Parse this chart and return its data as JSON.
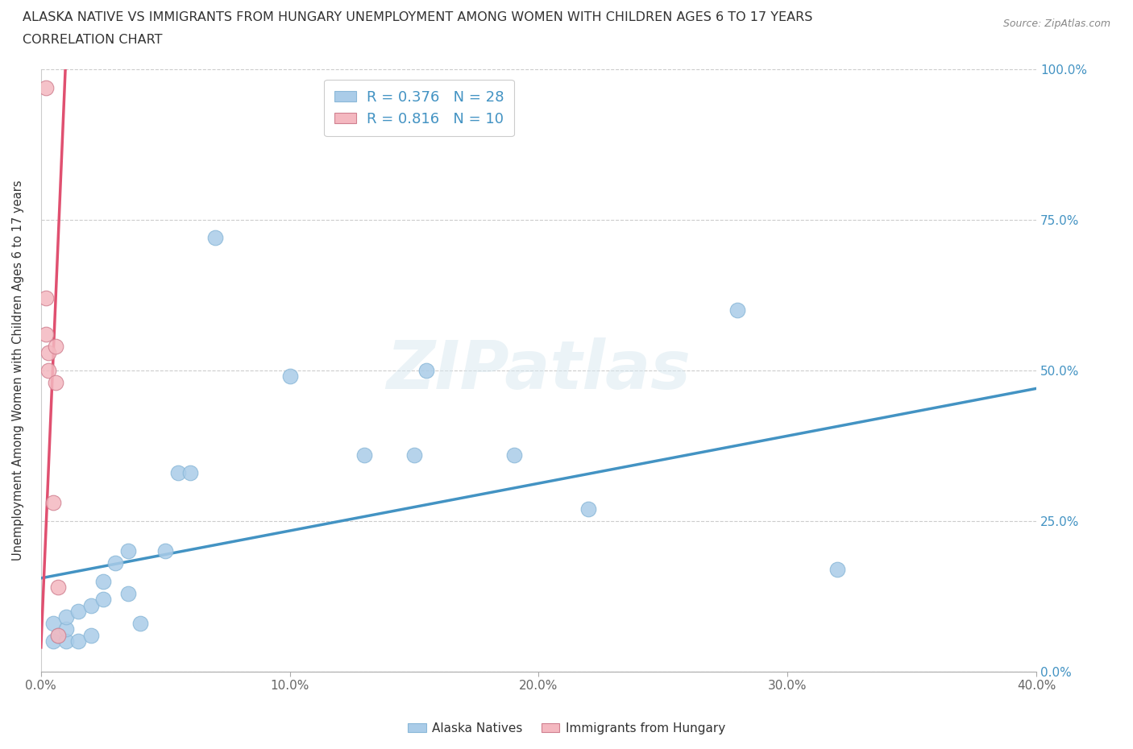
{
  "title_line1": "ALASKA NATIVE VS IMMIGRANTS FROM HUNGARY UNEMPLOYMENT AMONG WOMEN WITH CHILDREN AGES 6 TO 17 YEARS",
  "title_line2": "CORRELATION CHART",
  "source_text": "Source: ZipAtlas.com",
  "xlabel_ticks": [
    "0.0%",
    "10.0%",
    "20.0%",
    "30.0%",
    "40.0%"
  ],
  "xlabel_vals": [
    0.0,
    0.1,
    0.2,
    0.3,
    0.4
  ],
  "ylabel_ticks": [
    "0.0%",
    "25.0%",
    "50.0%",
    "75.0%",
    "100.0%"
  ],
  "ylabel_vals": [
    0.0,
    0.25,
    0.5,
    0.75,
    1.0
  ],
  "watermark": "ZIPatlas",
  "blue_color": "#aacce8",
  "pink_color": "#f4b8c0",
  "blue_line_color": "#4393c3",
  "pink_line_color": "#e05070",
  "alaska_x": [
    0.005,
    0.005,
    0.007,
    0.01,
    0.01,
    0.01,
    0.015,
    0.015,
    0.02,
    0.02,
    0.025,
    0.025,
    0.03,
    0.035,
    0.035,
    0.04,
    0.05,
    0.055,
    0.06,
    0.07,
    0.1,
    0.13,
    0.15,
    0.155,
    0.19,
    0.22,
    0.28,
    0.32
  ],
  "alaska_y": [
    0.05,
    0.08,
    0.06,
    0.05,
    0.07,
    0.09,
    0.05,
    0.1,
    0.06,
    0.11,
    0.12,
    0.15,
    0.18,
    0.13,
    0.2,
    0.08,
    0.2,
    0.33,
    0.33,
    0.72,
    0.49,
    0.36,
    0.36,
    0.5,
    0.36,
    0.27,
    0.6,
    0.17
  ],
  "hungary_x": [
    0.002,
    0.002,
    0.002,
    0.003,
    0.003,
    0.005,
    0.006,
    0.006,
    0.007,
    0.007
  ],
  "hungary_y": [
    0.97,
    0.62,
    0.56,
    0.53,
    0.5,
    0.28,
    0.54,
    0.48,
    0.14,
    0.06
  ],
  "blue_trend_x": [
    0.0,
    0.4
  ],
  "blue_trend_y": [
    0.155,
    0.47
  ],
  "pink_trend_x": [
    0.0,
    0.01
  ],
  "pink_trend_y": [
    0.04,
    1.02
  ],
  "xlim": [
    0.0,
    0.4
  ],
  "ylim": [
    0.0,
    1.0
  ]
}
